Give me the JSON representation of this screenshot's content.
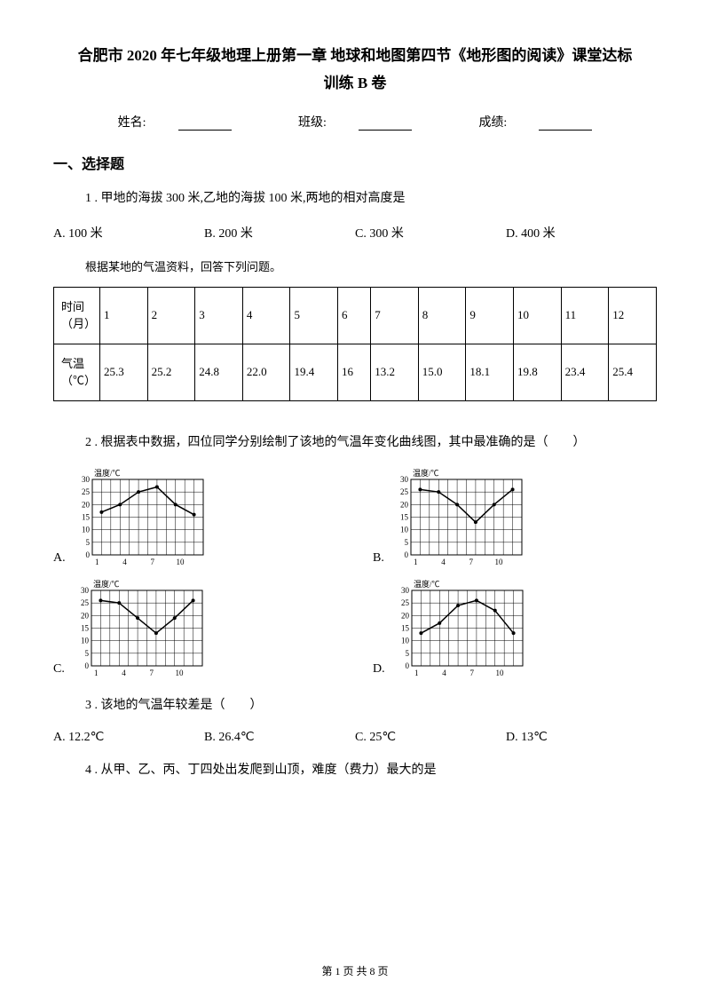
{
  "title_line1": "合肥市 2020 年七年级地理上册第一章 地球和地图第四节《地形图的阅读》课堂达标",
  "title_line2": "训练 B 卷",
  "info": {
    "name_label": "姓名:",
    "class_label": "班级:",
    "score_label": "成绩:"
  },
  "section1": "一、选择题",
  "q1": {
    "text": "1 . 甲地的海拔 300 米,乙地的海拔 100 米,两地的相对高度是",
    "optA": "A. 100 米",
    "optB": "B. 200 米",
    "optC": "C. 300 米",
    "optD": "D. 400 米"
  },
  "note_text": "根据某地的气温资料，回答下列问题。",
  "table": {
    "row1_header": "时间（月）",
    "row1": [
      "1",
      "2",
      "3",
      "4",
      "5",
      "6",
      "7",
      "8",
      "9",
      "10",
      "11",
      "12"
    ],
    "row2_header": "气温（℃）",
    "row2": [
      "25.3",
      "25.2",
      "24.8",
      "22.0",
      "19.4",
      "16",
      "13.2",
      "15.0",
      "18.1",
      "19.8",
      "23.4",
      "25.4"
    ]
  },
  "q2": {
    "text": "2 . 根据表中数据，四位同学分别绘制了该地的气温年变化曲线图，其中最准确的是（　　）"
  },
  "chart": {
    "ylabel": "温度/℃",
    "ymax": 30,
    "ymin": 0,
    "ytick_step": 5,
    "xticks": [
      "1",
      "4",
      "7",
      "10"
    ],
    "grid_color": "#000000",
    "line_color": "#000000",
    "bg_color": "#ffffff",
    "font_size": 9,
    "series": {
      "A": [
        17,
        20,
        25,
        27,
        20,
        16
      ],
      "B": [
        26,
        25,
        20,
        13,
        20,
        26
      ],
      "C": [
        26,
        25,
        19,
        13,
        19,
        26
      ],
      "D": [
        13,
        17,
        24,
        26,
        22,
        13
      ]
    }
  },
  "labels": {
    "A": "A.",
    "B": "B.",
    "C": "C.",
    "D": "D."
  },
  "q3": {
    "text": "3 . 该地的气温年较差是（　　）",
    "optA": "A. 12.2℃",
    "optB": "B. 26.4℃",
    "optC": "C. 25℃",
    "optD": "D. 13℃"
  },
  "q4": {
    "text": "4 . 从甲、乙、丙、丁四处出发爬到山顶，难度（费力）最大的是"
  },
  "footer": "第 1 页 共 8 页"
}
